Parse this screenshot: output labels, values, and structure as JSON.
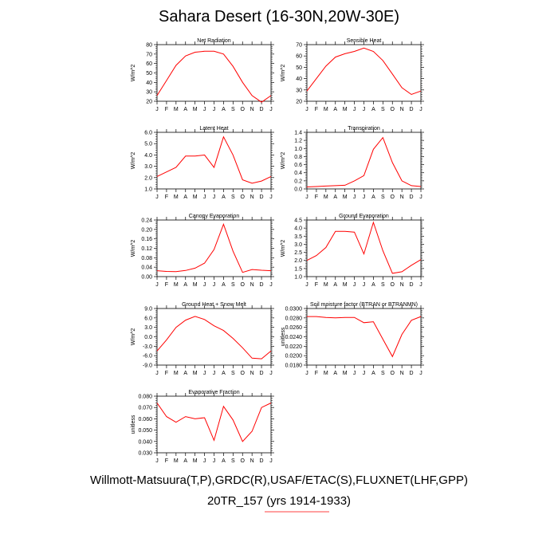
{
  "title": "Sahara Desert (16-30N,20W-30E)",
  "footer": {
    "line1": "Willmott-Matsuura(T,P),GRDC(R),USAF/ETAC(S),FLUXNET(LHF,GPP)",
    "line2": "20TR_157 (yrs 1914-1933)"
  },
  "colors": {
    "series": "#ff0000",
    "axis": "#000000",
    "underline": "#ff0000"
  },
  "chart_data": [
    {
      "type": "line",
      "title": "Net Radiation",
      "ylabel": "W/m^2",
      "categories": [
        "J",
        "F",
        "M",
        "A",
        "M",
        "J",
        "J",
        "A",
        "S",
        "O",
        "N",
        "D",
        "J"
      ],
      "values": [
        26,
        42,
        58,
        68,
        72,
        73,
        73,
        70,
        57,
        40,
        26,
        19,
        26
      ],
      "ylim": [
        20,
        80
      ],
      "yticks": [
        20,
        30,
        40,
        50,
        60,
        70,
        80
      ],
      "ytick_labels": [
        "20",
        "30",
        "40",
        "50",
        "60",
        "70",
        "80"
      ]
    },
    {
      "type": "line",
      "title": "Sensible Heat",
      "ylabel": "W/m^2",
      "categories": [
        "J",
        "F",
        "M",
        "A",
        "M",
        "J",
        "J",
        "A",
        "S",
        "O",
        "N",
        "D",
        "J"
      ],
      "values": [
        29,
        40,
        51,
        59,
        62,
        64,
        67,
        64,
        56,
        44,
        32,
        26,
        29
      ],
      "ylim": [
        20,
        70
      ],
      "yticks": [
        20,
        30,
        40,
        50,
        60,
        70
      ],
      "ytick_labels": [
        "20",
        "30",
        "40",
        "50",
        "60",
        "70"
      ]
    },
    {
      "type": "line",
      "title": "Latent Heat",
      "ylabel": "W/m^2",
      "categories": [
        "J",
        "F",
        "M",
        "A",
        "M",
        "J",
        "J",
        "A",
        "S",
        "O",
        "N",
        "D",
        "J"
      ],
      "values": [
        2.1,
        2.5,
        2.9,
        3.9,
        3.9,
        4.0,
        2.9,
        5.6,
        4.0,
        1.8,
        1.5,
        1.7,
        2.1
      ],
      "ylim": [
        1.0,
        6.0
      ],
      "yticks": [
        1.0,
        2.0,
        3.0,
        4.0,
        5.0,
        6.0
      ],
      "ytick_labels": [
        "1.0",
        "2.0",
        "3.0",
        "4.0",
        "5.0",
        "6.0"
      ]
    },
    {
      "type": "line",
      "title": "Transpiration",
      "ylabel": "W/m^2",
      "categories": [
        "J",
        "F",
        "M",
        "A",
        "M",
        "J",
        "J",
        "A",
        "S",
        "O",
        "N",
        "D",
        "J"
      ],
      "values": [
        0.05,
        0.06,
        0.07,
        0.08,
        0.09,
        0.2,
        0.33,
        0.98,
        1.27,
        0.65,
        0.2,
        0.08,
        0.06
      ],
      "ylim": [
        0.0,
        1.4
      ],
      "yticks": [
        0.0,
        0.2,
        0.4,
        0.6,
        0.8,
        1.0,
        1.2,
        1.4
      ],
      "ytick_labels": [
        "0.0",
        "0.2",
        "0.4",
        "0.6",
        "0.8",
        "1.0",
        "1.2",
        "1.4"
      ]
    },
    {
      "type": "line",
      "title": "Canopy Evaporation",
      "ylabel": "W/m^2",
      "categories": [
        "J",
        "F",
        "M",
        "A",
        "M",
        "J",
        "J",
        "A",
        "S",
        "O",
        "N",
        "D",
        "J"
      ],
      "values": [
        0.025,
        0.022,
        0.021,
        0.026,
        0.036,
        0.057,
        0.115,
        0.222,
        0.108,
        0.018,
        0.03,
        0.027,
        0.025
      ],
      "ylim": [
        0.0,
        0.24
      ],
      "yticks": [
        0.0,
        0.04,
        0.08,
        0.12,
        0.16,
        0.2,
        0.24
      ],
      "ytick_labels": [
        "0.00",
        "0.04",
        "0.08",
        "0.12",
        "0.16",
        "0.20",
        "0.24"
      ]
    },
    {
      "type": "line",
      "title": "Ground Evaporation",
      "ylabel": "W/m^2",
      "categories": [
        "J",
        "F",
        "M",
        "A",
        "M",
        "J",
        "J",
        "A",
        "S",
        "O",
        "N",
        "D",
        "J"
      ],
      "values": [
        2.0,
        2.3,
        2.8,
        3.8,
        3.8,
        3.75,
        2.4,
        4.35,
        2.6,
        1.2,
        1.3,
        1.7,
        2.05
      ],
      "ylim": [
        1.0,
        4.5
      ],
      "yticks": [
        1.0,
        1.5,
        2.0,
        2.5,
        3.0,
        3.5,
        4.0,
        4.5
      ],
      "ytick_labels": [
        "1.0",
        "1.5",
        "2.0",
        "2.5",
        "3.0",
        "3.5",
        "4.0",
        "4.5"
      ]
    },
    {
      "type": "line",
      "title": "Ground Heat + Snow Melt",
      "ylabel": "W/m^2",
      "categories": [
        "J",
        "F",
        "M",
        "A",
        "M",
        "J",
        "J",
        "A",
        "S",
        "O",
        "N",
        "D",
        "J"
      ],
      "values": [
        -4.5,
        -1.0,
        3.0,
        5.3,
        6.5,
        5.5,
        3.5,
        2.0,
        -0.5,
        -3.5,
        -6.8,
        -7.0,
        -4.5
      ],
      "ylim": [
        -9.0,
        9.0
      ],
      "yticks": [
        -9,
        -6,
        -3,
        0,
        3,
        6,
        9
      ],
      "ytick_labels": [
        "-9.0",
        "-6.0",
        "-3.0",
        "0.0",
        "3.0",
        "6.0",
        "9.0"
      ]
    },
    {
      "type": "line",
      "title": "Soil moisture factor (BTRAN or BTRANMN)",
      "ylabel": "unitless",
      "categories": [
        "J",
        "F",
        "M",
        "A",
        "M",
        "J",
        "J",
        "A",
        "S",
        "O",
        "N",
        "D",
        "J"
      ],
      "values": [
        0.0283,
        0.0283,
        0.0281,
        0.028,
        0.0281,
        0.0281,
        0.027,
        0.0272,
        0.0235,
        0.0198,
        0.0245,
        0.0275,
        0.0283
      ],
      "ylim": [
        0.018,
        0.03
      ],
      "yticks": [
        0.018,
        0.02,
        0.022,
        0.024,
        0.026,
        0.028,
        0.03
      ],
      "ytick_labels": [
        "0.0180",
        "0.0200",
        "0.0220",
        "0.0240",
        "0.0260",
        "0.0280",
        "0.0300"
      ]
    },
    {
      "type": "line",
      "title": "Evaporative Fraction",
      "ylabel": "unitless",
      "categories": [
        "J",
        "F",
        "M",
        "A",
        "M",
        "J",
        "J",
        "A",
        "S",
        "O",
        "N",
        "D",
        "J"
      ],
      "values": [
        0.074,
        0.062,
        0.057,
        0.062,
        0.06,
        0.061,
        0.041,
        0.071,
        0.059,
        0.04,
        0.049,
        0.07,
        0.074
      ],
      "ylim": [
        0.03,
        0.08
      ],
      "yticks": [
        0.03,
        0.04,
        0.05,
        0.06,
        0.07,
        0.08
      ],
      "ytick_labels": [
        "0.030",
        "0.040",
        "0.050",
        "0.060",
        "0.070",
        "0.080"
      ]
    }
  ]
}
